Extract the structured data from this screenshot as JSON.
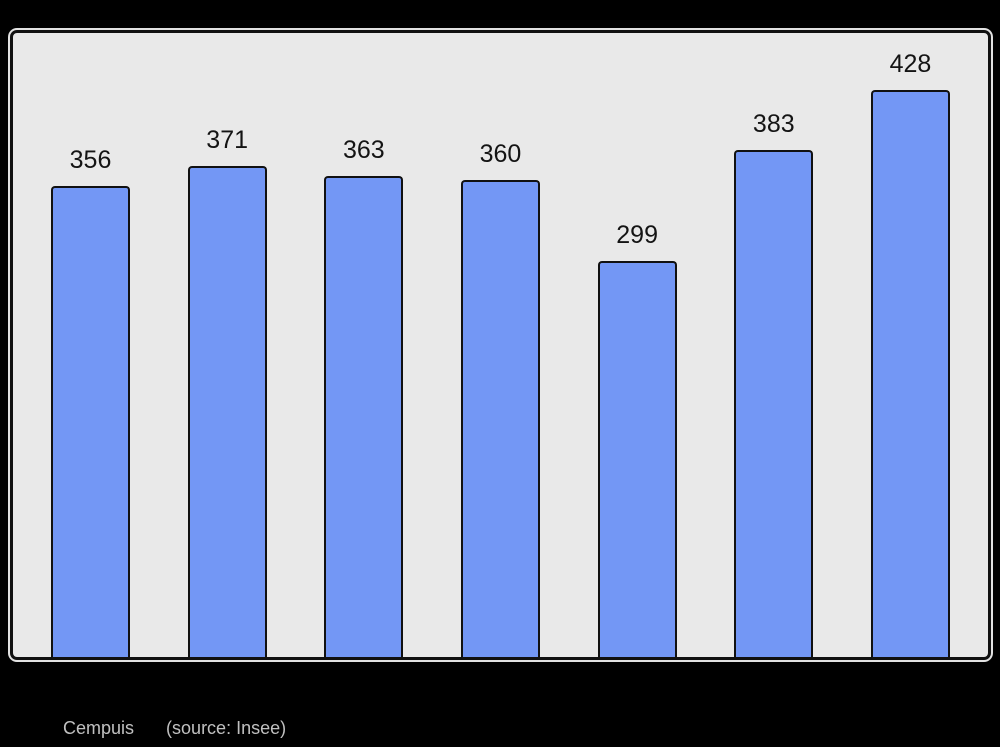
{
  "page": {
    "background_color": "#000000"
  },
  "panel": {
    "background_color": "#e9e9e9",
    "border_color": "#111111",
    "outer_edge_color": "#e2e2e2"
  },
  "caption": {
    "name": "Cempuis",
    "source": "(source: Insee)",
    "color": "#c0c0c0"
  },
  "chart_data": {
    "type": "bar",
    "values": [
      356,
      371,
      363,
      360,
      299,
      383,
      428
    ],
    "data_labels": [
      "356",
      "371",
      "363",
      "360",
      "299",
      "383",
      "428"
    ],
    "title": "",
    "xlabel": "",
    "ylabel": "",
    "ylim": [
      0,
      471
    ],
    "grid": false,
    "legend_position": "none",
    "bar_color": "#7397f5",
    "bar_border_color": "#111111",
    "data_label_color": "#141414"
  }
}
